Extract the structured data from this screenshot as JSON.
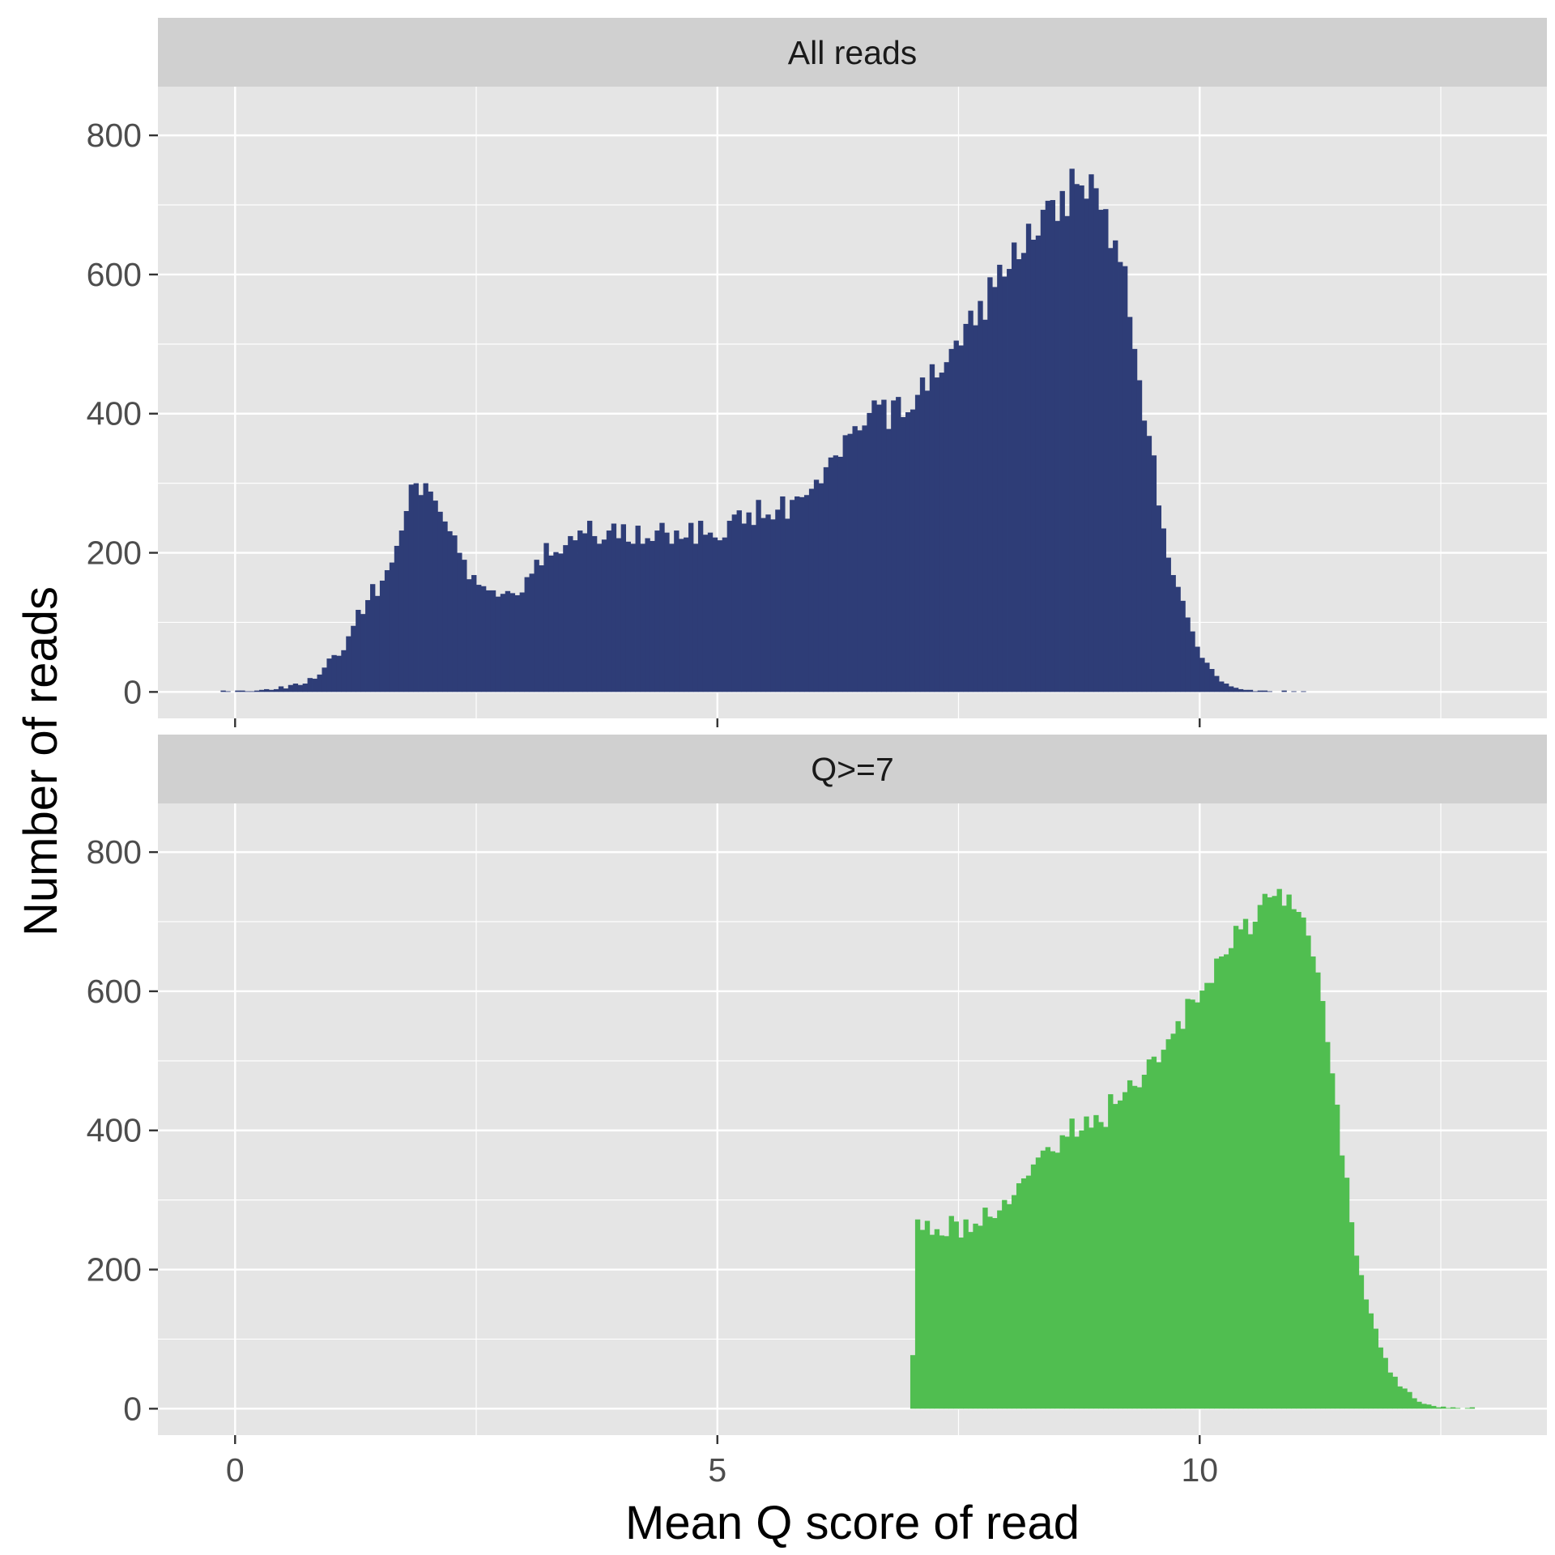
{
  "chart_data": {
    "type": "bar",
    "subtype": "histogram",
    "xlabel": "Mean Q score of read",
    "ylabel": "Number of reads",
    "xlim": [
      -0.8,
      13.6
    ],
    "ylim": [
      -38,
      870
    ],
    "x_ticks": [
      0,
      5,
      10
    ],
    "x_tick_labels": [
      "0",
      "5",
      "10"
    ],
    "y_ticks": [
      0,
      200,
      400,
      600,
      800
    ],
    "y_tick_labels": [
      "0",
      "200",
      "400",
      "600",
      "800"
    ],
    "grid": true,
    "legend": "none",
    "bin_width": 0.05,
    "bin_start": -0.15,
    "panels": [
      {
        "name": "All reads",
        "color": "#2e3d77",
        "counts": [
          2,
          1,
          0,
          2,
          2,
          1,
          1,
          2,
          3,
          4,
          3,
          4,
          8,
          5,
          10,
          12,
          10,
          12,
          20,
          19,
          25,
          35,
          48,
          53,
          52,
          60,
          80,
          95,
          118,
          112,
          132,
          155,
          138,
          160,
          175,
          186,
          210,
          232,
          260,
          298,
          300,
          283,
          300,
          288,
          275,
          259,
          245,
          231,
          225,
          200,
          190,
          162,
          168,
          154,
          152,
          146,
          146,
          137,
          141,
          145,
          142,
          139,
          143,
          165,
          170,
          190,
          182,
          214,
          196,
          201,
          199,
          211,
          224,
          218,
          232,
          228,
          246,
          224,
          213,
          219,
          232,
          242,
          221,
          241,
          216,
          213,
          239,
          213,
          221,
          217,
          232,
          243,
          229,
          213,
          232,
          220,
          222,
          243,
          213,
          246,
          226,
          229,
          222,
          218,
          222,
          246,
          255,
          261,
          242,
          258,
          240,
          276,
          250,
          255,
          248,
          262,
          281,
          249,
          276,
          281,
          280,
          283,
          292,
          305,
          300,
          323,
          337,
          340,
          338,
          369,
          371,
          382,
          376,
          383,
          401,
          419,
          413,
          420,
          378,
          419,
          424,
          395,
          402,
          406,
          427,
          452,
          433,
          471,
          452,
          459,
          474,
          493,
          505,
          498,
          529,
          548,
          527,
          562,
          535,
          596,
          582,
          614,
          597,
          608,
          646,
          622,
          631,
          673,
          650,
          656,
          693,
          706,
          707,
          677,
          720,
          684,
          752,
          730,
          728,
          709,
          744,
          724,
          693,
          694,
          638,
          649,
          618,
          612,
          539,
          493,
          448,
          390,
          368,
          340,
          268,
          235,
          193,
          168,
          151,
          131,
          107,
          87,
          65,
          49,
          42,
          33,
          23,
          15,
          12,
          8,
          6,
          4,
          3,
          3,
          1,
          2,
          2,
          1,
          0,
          0,
          2,
          0,
          1,
          0,
          1,
          0
        ],
        "highlight_counts": []
      },
      {
        "name": "Q>=7",
        "color": "#50be50",
        "counts": [],
        "highlight_counts": [
          77,
          272,
          257,
          270,
          250,
          258,
          249,
          248,
          277,
          269,
          246,
          272,
          254,
          266,
          263,
          289,
          276,
          274,
          285,
          300,
          294,
          307,
          324,
          331,
          335,
          351,
          361,
          371,
          376,
          370,
          368,
          393,
          391,
          417,
          391,
          400,
          420,
          404,
          422,
          412,
          405,
          452,
          438,
          443,
          455,
          472,
          464,
          462,
          480,
          502,
          506,
          498,
          516,
          531,
          539,
          557,
          546,
          589,
          588,
          584,
          601,
          612,
          612,
          647,
          650,
          653,
          662,
          694,
          689,
          704,
          682,
          700,
          724,
          740,
          735,
          737,
          747,
          723,
          739,
          718,
          714,
          706,
          680,
          650,
          627,
          586,
          527,
          482,
          437,
          364,
          332,
          268,
          220,
          192,
          157,
          137,
          115,
          88,
          73,
          52,
          46,
          32,
          29,
          24,
          15,
          10,
          7,
          6,
          4,
          2,
          3,
          1,
          2,
          1,
          0,
          1,
          2
        ]
      }
    ]
  }
}
